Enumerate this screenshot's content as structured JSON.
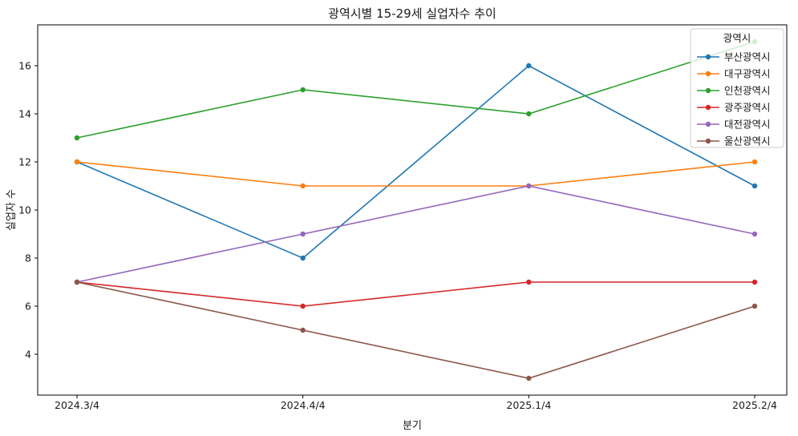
{
  "chart_data": {
    "type": "line",
    "title": "광역시별 15-29세 실업자수 추이",
    "xlabel": "분기",
    "ylabel": "실업자 수",
    "legend_title": "광역시",
    "legend_position": "upper right",
    "grid": false,
    "categories": [
      "2024.3/4",
      "2024.4/4",
      "2025.1/4",
      "2025.2/4"
    ],
    "yticks": [
      4,
      6,
      8,
      10,
      12,
      14,
      16
    ],
    "ylim": [
      2.3,
      17.7
    ],
    "series": [
      {
        "name": "부산광역시",
        "id": "busan",
        "color": "#1f77b4",
        "values": [
          12,
          8,
          16,
          11
        ]
      },
      {
        "name": "대구광역시",
        "id": "daegu",
        "color": "#ff7f0e",
        "values": [
          12,
          11,
          11,
          12
        ]
      },
      {
        "name": "인천광역시",
        "id": "incheon",
        "color": "#2ca02c",
        "values": [
          13,
          15,
          14,
          17
        ]
      },
      {
        "name": "광주광역시",
        "id": "gwangju",
        "color": "#d62728",
        "values": [
          7,
          6,
          7,
          7
        ]
      },
      {
        "name": "대전광역시",
        "id": "daejeon",
        "color": "#9467bd",
        "values": [
          7,
          9,
          11,
          9
        ]
      },
      {
        "name": "울산광역시",
        "id": "ulsan",
        "color": "#8c564b",
        "values": [
          7,
          5,
          3,
          6
        ]
      }
    ]
  }
}
